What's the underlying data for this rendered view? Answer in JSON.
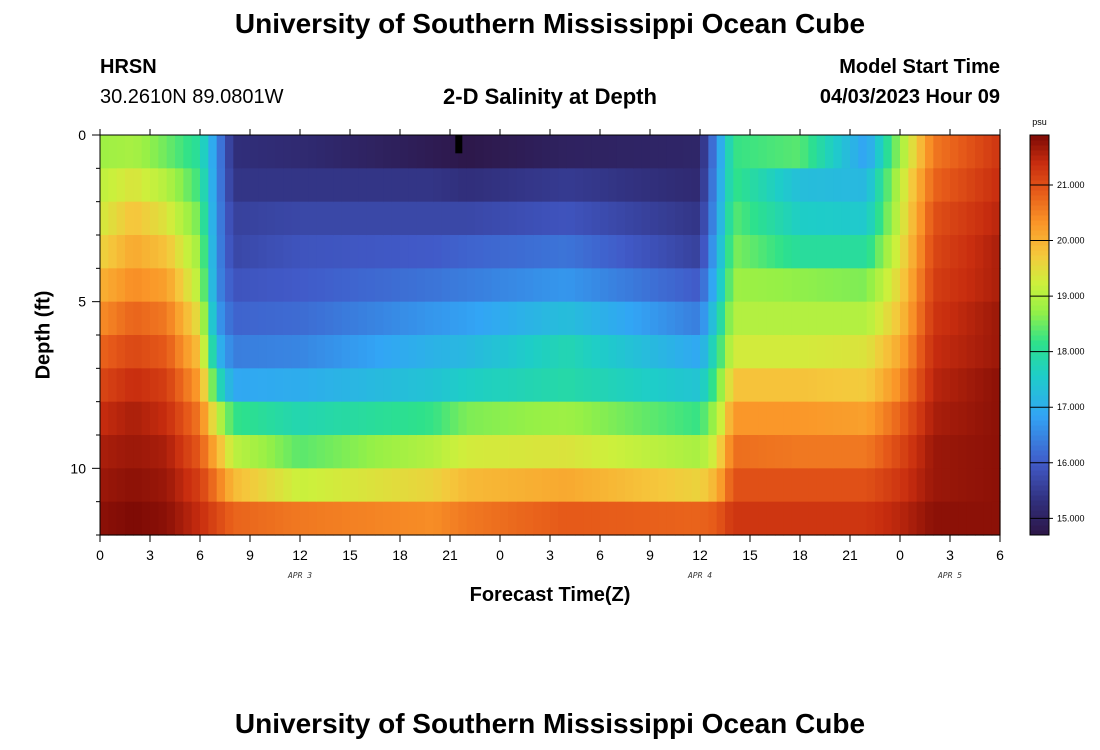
{
  "page": {
    "title_top": "University of Southern Mississippi Ocean Cube",
    "title_bottom": "University of Southern Mississippi Ocean Cube",
    "station_name": "HRSN",
    "station_coords": "30.2610N  89.0801W",
    "model_start_label": "Model Start Time",
    "model_start_value": "04/03/2023 Hour 09"
  },
  "chart_data": {
    "type": "heatmap",
    "title": "2-D Salinity at Depth",
    "xlabel": "Forecast Time(Z)",
    "ylabel": "Depth (ft)",
    "x_range_hours": [
      0,
      54
    ],
    "y_range_ft": [
      0,
      12
    ],
    "x_tick_labels": [
      "0",
      "3",
      "6",
      "9",
      "12",
      "15",
      "18",
      "21",
      "0",
      "3",
      "6",
      "9",
      "12",
      "15",
      "18",
      "21",
      "0",
      "3",
      "6"
    ],
    "y_tick_labels": [
      "0",
      "5",
      "10"
    ],
    "y_tick_values": [
      0,
      5,
      10
    ],
    "date_labels": [
      {
        "text": "APR 3",
        "hour": 12
      },
      {
        "text": "APR 4",
        "hour": 36
      },
      {
        "text": "APR 5",
        "hour": 51
      }
    ],
    "colorbar": {
      "unit": "psu",
      "range": [
        14.7,
        21.9
      ],
      "ticks": [
        "15.000",
        "16.000",
        "17.000",
        "18.000",
        "19.000",
        "20.000",
        "21.000"
      ],
      "tick_values": [
        15,
        16,
        17,
        18,
        19,
        20,
        21
      ]
    },
    "cols": 108,
    "rows": 12,
    "profile_hours": [
      0,
      2,
      4,
      6,
      7,
      8,
      12,
      20,
      22,
      28,
      36,
      37,
      38,
      42,
      46,
      48,
      50,
      54
    ],
    "profile_values": [
      [
        18.8,
        19.1,
        19.3,
        19.6,
        20.0,
        20.4,
        20.8,
        21.1,
        21.4,
        21.6,
        21.7,
        21.8
      ],
      [
        18.9,
        19.4,
        19.8,
        20.1,
        20.4,
        20.8,
        21.1,
        21.4,
        21.6,
        21.7,
        21.8,
        21.9
      ],
      [
        18.5,
        19.0,
        19.4,
        19.8,
        20.2,
        20.6,
        20.9,
        21.2,
        21.4,
        21.6,
        21.7,
        21.8
      ],
      [
        18.0,
        18.2,
        18.5,
        18.8,
        19.0,
        19.4,
        19.8,
        20.2,
        20.6,
        20.9,
        21.2,
        21.4
      ],
      [
        16.6,
        16.6,
        16.6,
        16.6,
        16.6,
        16.8,
        17.2,
        18.0,
        19.2,
        20.0,
        20.6,
        21.1
      ],
      [
        15.3,
        15.4,
        15.6,
        15.7,
        15.9,
        16.1,
        16.4,
        16.9,
        18.2,
        19.1,
        19.9,
        20.8
      ],
      [
        15.2,
        15.4,
        15.7,
        15.9,
        16.0,
        16.2,
        16.5,
        17.0,
        17.8,
        18.4,
        19.2,
        20.6
      ],
      [
        14.85,
        15.4,
        15.7,
        16.0,
        16.3,
        16.7,
        17.1,
        17.4,
        18.2,
        19.0,
        19.6,
        20.4
      ],
      [
        14.75,
        15.3,
        15.7,
        16.1,
        16.4,
        16.8,
        17.2,
        17.6,
        18.6,
        19.3,
        19.9,
        20.6
      ],
      [
        15.0,
        15.5,
        15.9,
        16.3,
        16.7,
        17.3,
        17.8,
        17.9,
        18.8,
        19.4,
        20.1,
        20.9
      ],
      [
        15.1,
        15.2,
        15.4,
        15.6,
        16.0,
        16.4,
        16.9,
        17.4,
        18.2,
        18.9,
        19.6,
        20.8
      ],
      [
        16.6,
        16.7,
        16.8,
        17.0,
        17.2,
        17.6,
        18.0,
        18.4,
        18.9,
        19.4,
        20.0,
        20.9
      ],
      [
        18.2,
        18.2,
        18.4,
        18.6,
        18.8,
        19.0,
        19.3,
        19.8,
        20.3,
        20.7,
        21.0,
        21.3
      ],
      [
        18.4,
        17.3,
        17.6,
        18.0,
        18.7,
        19.0,
        19.3,
        19.8,
        20.3,
        20.6,
        21.0,
        21.3
      ],
      [
        16.8,
        17.2,
        17.5,
        18.0,
        18.6,
        19.0,
        19.4,
        19.7,
        20.2,
        20.6,
        21.0,
        21.3
      ],
      [
        18.8,
        19.1,
        19.2,
        19.4,
        19.6,
        19.8,
        20.1,
        20.4,
        20.8,
        21.1,
        21.3,
        21.5
      ],
      [
        20.6,
        20.8,
        21.0,
        21.1,
        21.2,
        21.3,
        21.4,
        21.5,
        21.6,
        21.7,
        21.7,
        21.8
      ],
      [
        21.3,
        21.4,
        21.5,
        21.6,
        21.6,
        21.7,
        21.7,
        21.8,
        21.8,
        21.8,
        21.8,
        21.8
      ]
    ],
    "marker": {
      "hour": 21.5,
      "depth_ft": 0.25
    }
  }
}
